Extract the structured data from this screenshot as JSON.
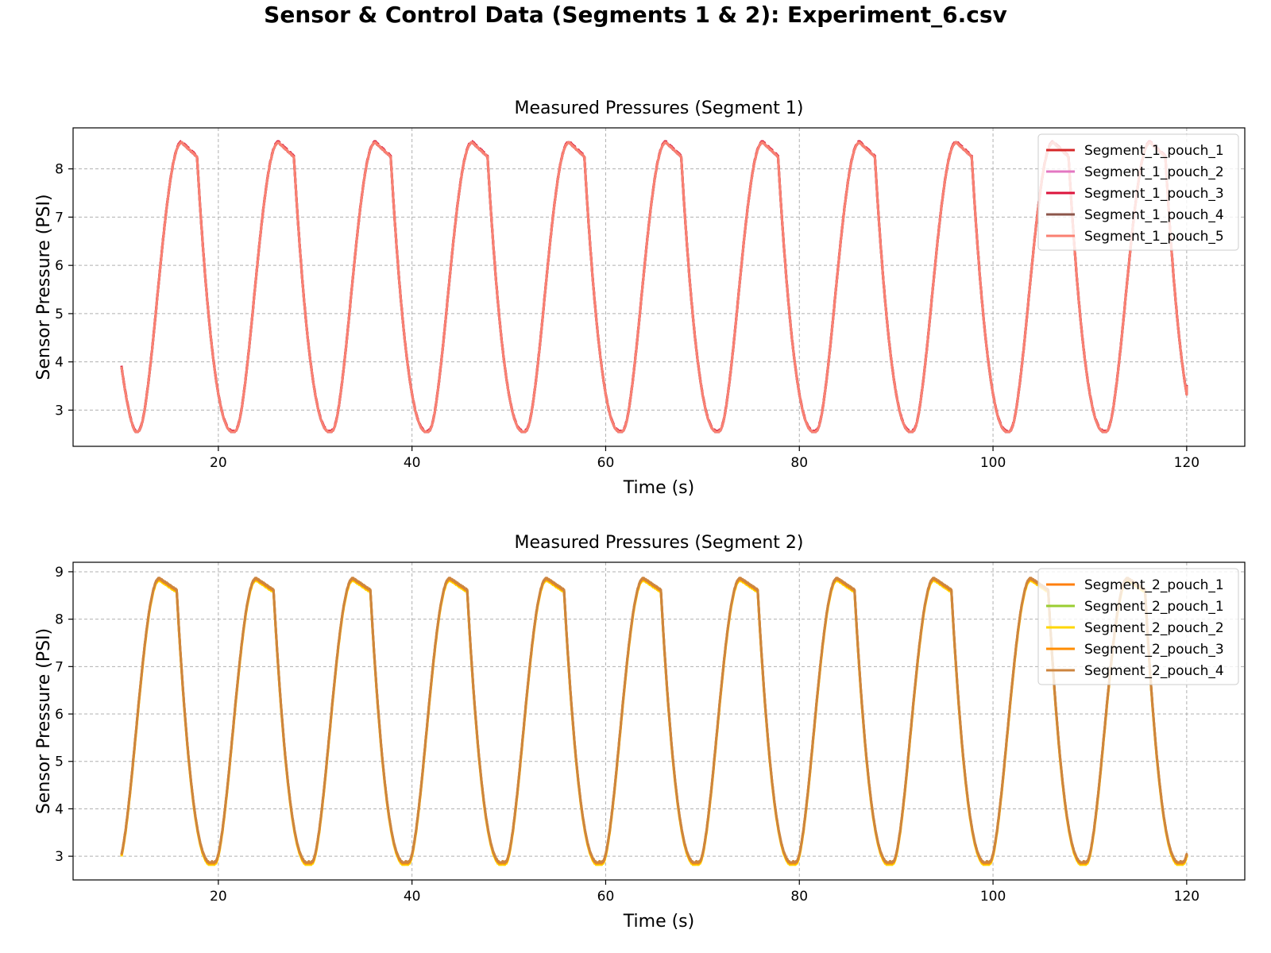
{
  "figure": {
    "title": "Sensor & Control Data (Segments 1 & 2): Experiment_6.csv"
  },
  "chart_data": [
    {
      "type": "line",
      "title": "Measured Pressures (Segment 1)",
      "xlabel": "Time (s)",
      "ylabel": "Sensor Pressure (PSI)",
      "xlim": [
        5,
        126
      ],
      "ylim": [
        2.25,
        8.85
      ],
      "xticks": [
        20,
        40,
        60,
        80,
        100,
        120
      ],
      "yticks": [
        3,
        4,
        5,
        6,
        7,
        8
      ],
      "grid": true,
      "legend_position": "top-right",
      "signal": {
        "start_time": 10,
        "end_time": 120,
        "start_value": 3.9,
        "end_value": 3.5,
        "period": 10,
        "minimum": 2.55,
        "maximum": 8.55,
        "min_phase": 11.5,
        "rise_phase": 16.2,
        "plateau_end_phase": 17.8,
        "plateau_end_value": 8.25,
        "fall_phase": 21.5,
        "hold_phase": 22.8,
        "hold_value": 2.68
      },
      "series": [
        {
          "name": "Segment_1_pouch_1",
          "color": "#d62728",
          "offset": 0.0,
          "dashed": false
        },
        {
          "name": "Segment_1_pouch_2",
          "color": "#e377c2",
          "offset": 0.0,
          "dashed": false
        },
        {
          "name": "Segment_1_pouch_3",
          "color": "#dc143c",
          "offset": 0.02,
          "dashed": true
        },
        {
          "name": "Segment_1_pouch_4",
          "color": "#8c564b",
          "offset": 0.0,
          "dashed": false
        },
        {
          "name": "Segment_1_pouch_5",
          "color": "#fa8072",
          "offset": 0.0,
          "dashed": false
        }
      ]
    },
    {
      "type": "line",
      "title": "Measured Pressures (Segment 2)",
      "xlabel": "Time (s)",
      "ylabel": "Sensor Pressure (PSI)",
      "xlim": [
        5,
        126
      ],
      "ylim": [
        2.5,
        9.2
      ],
      "xticks": [
        20,
        40,
        60,
        80,
        100,
        120
      ],
      "yticks": [
        3,
        4,
        5,
        6,
        7,
        8,
        9
      ],
      "grid": true,
      "legend_position": "top-right",
      "signal": {
        "start_time": 10,
        "end_time": 120,
        "start_value": 2.95,
        "end_value": 3.0,
        "period": 10,
        "minimum": 2.85,
        "maximum": 8.85,
        "min_phase": 9.4,
        "rise_phase": 13.9,
        "plateau_end_phase": 15.7,
        "plateau_end_value": 8.6,
        "fall_phase": 19.2,
        "hold_phase": 20.6,
        "hold_value": 2.98
      },
      "series": [
        {
          "name": "Segment_2_pouch_1",
          "color": "#ff7f0e",
          "offset": 0.0,
          "dashed": false
        },
        {
          "name": "Segment_2_pouch_1",
          "color": "#9acd32",
          "offset": 0.0,
          "dashed": false
        },
        {
          "name": "Segment_2_pouch_2",
          "color": "#ffd700",
          "offset": -0.03,
          "dashed": false
        },
        {
          "name": "Segment_2_pouch_3",
          "color": "#ff8c00",
          "offset": 0.0,
          "dashed": false
        },
        {
          "name": "Segment_2_pouch_4",
          "color": "#cd853f",
          "offset": 0.02,
          "dashed": false
        }
      ]
    }
  ]
}
